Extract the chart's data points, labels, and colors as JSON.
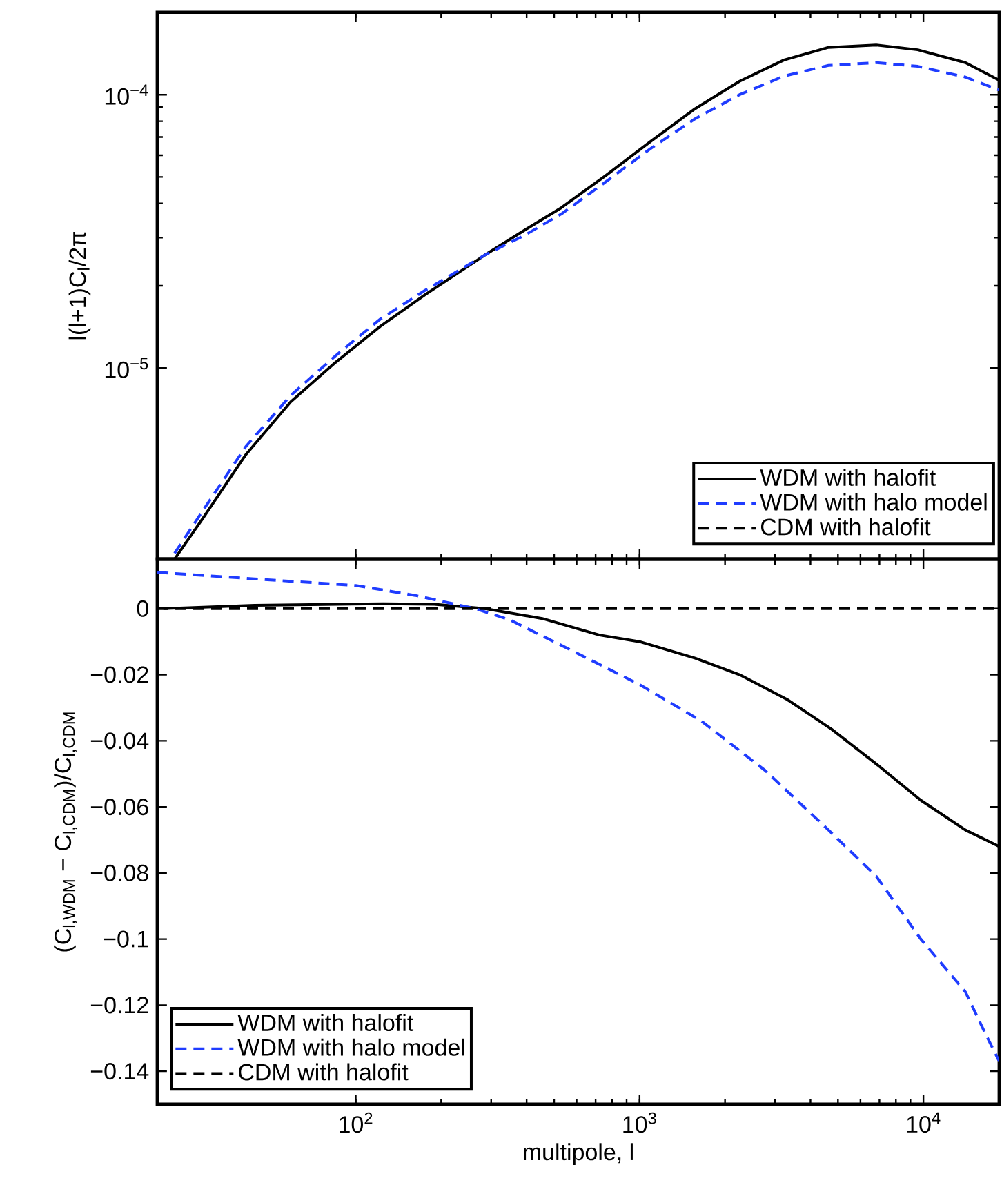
{
  "chart_data": [
    {
      "type": "line",
      "ylabel": "l(l+1)C$_{l}$/2π",
      "log": "xy",
      "xlim": [
        20,
        18500
      ],
      "ylim": [
        2e-06,
        0.0002
      ],
      "xticks": [
        100,
        1000,
        10000
      ],
      "yticks": [
        {
          "value": 1e-05,
          "label": "10$^{−5}$"
        },
        {
          "value": 0.0001,
          "label": "10$^{−4}$"
        }
      ],
      "tick_labels": "y",
      "legend": "bottom right",
      "series": [
        {
          "name": "WDM with halofit",
          "color": "#000000",
          "line_style": "solid",
          "x": [
            23,
            29,
            41,
            59,
            85,
            122,
            175,
            285,
            389,
            530,
            760,
            1090,
            1570,
            2250,
            3230,
            4630,
            6820,
            9550,
            14060,
            18500
          ],
          "values": [
            2e-06,
            2.83e-06,
            4.82e-06,
            7.52e-06,
            1.05e-05,
            1.42e-05,
            1.85e-05,
            2.59e-05,
            3.17e-05,
            3.86e-05,
            5.06e-05,
            6.73e-05,
            8.89e-05,
            0.000112,
            0.000134,
            0.000149,
            0.000152,
            0.000146,
            0.000131,
            0.000113
          ]
        },
        {
          "name": "WDM with halo model",
          "color": "#1f3cff",
          "line_style": "dashed",
          "x": [
            23,
            29,
            41,
            59,
            85,
            122,
            175,
            285,
            389,
            530,
            760,
            1090,
            1570,
            2250,
            3230,
            4630,
            6820,
            9550,
            14060,
            18500
          ],
          "values": [
            2.1e-06,
            3.02e-06,
            5.16e-06,
            7.94e-06,
            1.11e-05,
            1.51e-05,
            1.92e-05,
            2.59e-05,
            3.04e-05,
            3.66e-05,
            4.8e-05,
            6.34e-05,
            8.17e-05,
            0.0001,
            0.000117,
            0.000128,
            0.000131,
            0.000127,
            0.000116,
            0.000104
          ]
        },
        {
          "name": "CDM with halofit",
          "color": "#000000",
          "line_style": "dashed"
        }
      ]
    },
    {
      "type": "line",
      "xlabel": "multipole, l",
      "ylabel": "(C$_{l,WDM}$ − C$_{l,CDM}$)/C$_{l,CDM}$",
      "log": "x",
      "xlim": [
        20,
        18500
      ],
      "ylim": [
        -0.15,
        0.015
      ],
      "xticks": [
        {
          "value": 100,
          "label": "10$^{2}$"
        },
        {
          "value": 1000,
          "label": "10$^{3}$"
        },
        {
          "value": 10000,
          "label": "10$^{4}$"
        }
      ],
      "yticks": [
        {
          "value": -0.14,
          "label": "−0.14"
        },
        {
          "value": -0.12,
          "label": "−0.12"
        },
        {
          "value": -0.1,
          "label": "−0.1"
        },
        {
          "value": -0.08,
          "label": "−0.08"
        },
        {
          "value": -0.06,
          "label": "−0.06"
        },
        {
          "value": -0.04,
          "label": "−0.04"
        },
        {
          "value": -0.02,
          "label": "−0.02"
        },
        0
      ],
      "legend": "bottom left",
      "series": [
        {
          "name": "WDM with halofit",
          "color": "#000000",
          "line_style": "solid",
          "x": [
            21,
            44,
            125,
            189,
            285,
            454,
            723,
            1000,
            1570,
            2250,
            3310,
            4750,
            6820,
            9790,
            14060,
            18500
          ],
          "values": [
            0,
            0.001,
            0.0015,
            0.0013,
            0,
            -0.003,
            -0.008,
            -0.01,
            -0.015,
            -0.02,
            -0.0275,
            -0.0365,
            -0.047,
            -0.058,
            -0.067,
            -0.072
          ]
        },
        {
          "name": "WDM with halo model",
          "color": "#1f3cff",
          "line_style": "dashed",
          "x": [
            20,
            44,
            100,
            162,
            264,
            351,
            587,
            1000,
            1650,
            2770,
            4630,
            6820,
            9790,
            14060,
            16400,
            18500
          ],
          "values": [
            0.011,
            0.009,
            0.007,
            0.004,
            0,
            -0.0035,
            -0.013,
            -0.023,
            -0.034,
            -0.049,
            -0.067,
            -0.081,
            -0.1,
            -0.116,
            -0.128,
            -0.137
          ]
        },
        {
          "name": "CDM with halofit",
          "color": "#000000",
          "line_style": "dashed",
          "x": [
            20,
            18500
          ],
          "values": [
            0,
            0
          ]
        }
      ]
    }
  ]
}
